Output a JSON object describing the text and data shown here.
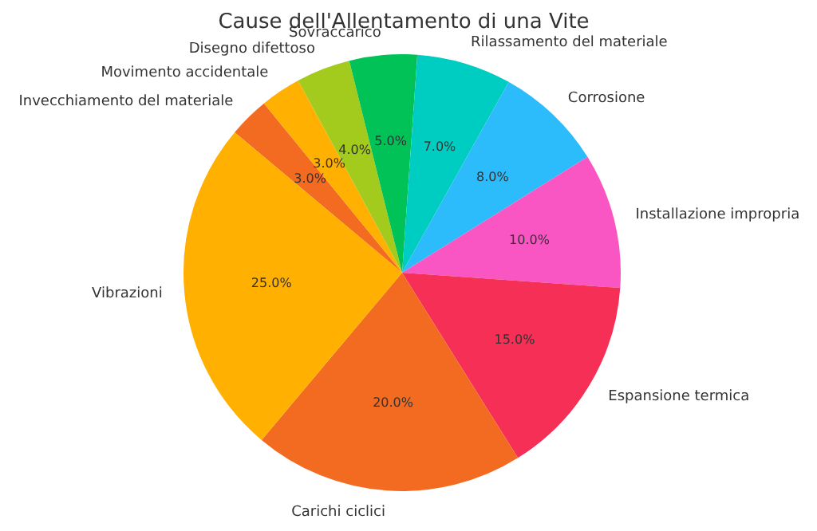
{
  "chart_data": {
    "type": "pie",
    "title": "Cause dell'Allentamento di una Vite",
    "categories": [
      "Invecchiamento del materiale",
      "Movimento accidentale",
      "Disegno difettoso",
      "Sovraccarico",
      "Rilassamento del materiale",
      "Corrosione",
      "Installazione impropria",
      "Espansione termica",
      "Carichi ciclici",
      "Vibrazioni"
    ],
    "values": [
      3,
      3,
      4,
      5,
      7,
      8,
      10,
      15,
      20,
      25
    ],
    "value_labels": [
      "3.0%",
      "3.0%",
      "4.0%",
      "5.0%",
      "7.0%",
      "8.0%",
      "10.0%",
      "15.0%",
      "20.0%",
      "25.0%"
    ],
    "colors": [
      "#f26b21",
      "#ffb000",
      "#a3cb1e",
      "#00c257",
      "#00cdc1",
      "#2dbcfb",
      "#f956c4",
      "#f52f56",
      "#f26b21",
      "#ffb000"
    ],
    "legend": false
  }
}
